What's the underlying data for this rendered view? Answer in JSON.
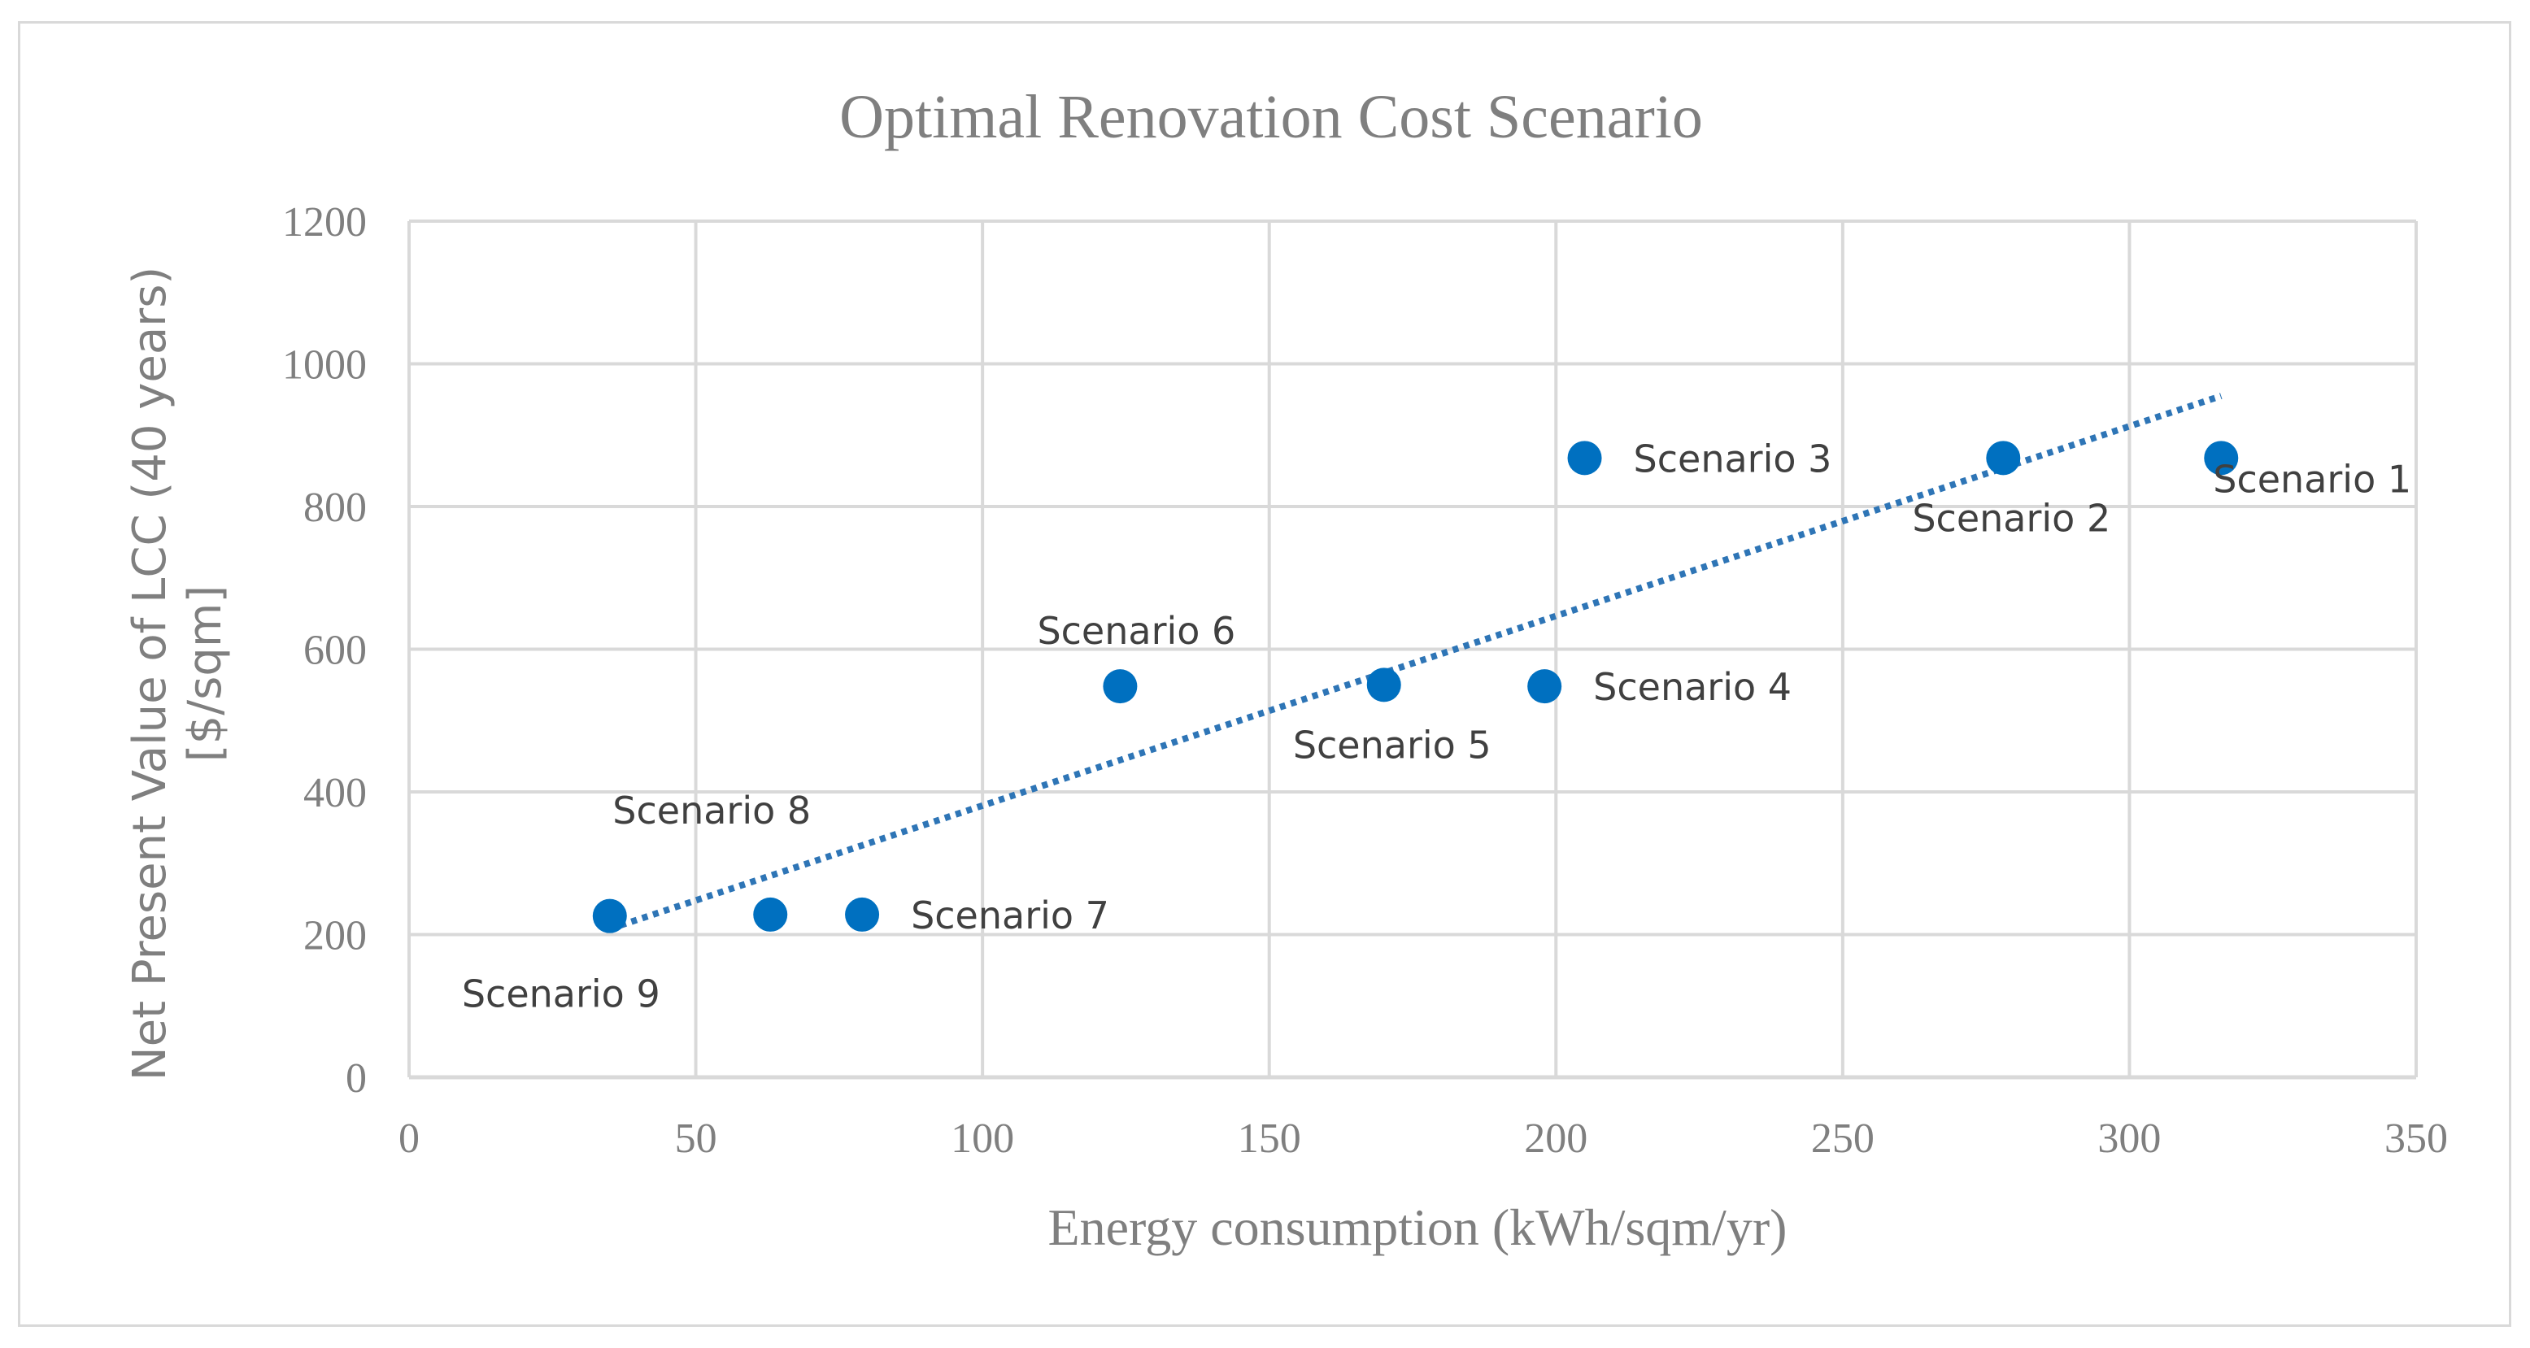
{
  "chart_data": {
    "type": "scatter",
    "title": "Optimal Renovation Cost Scenario",
    "xlabel": "Energy consumption (kWh/sqm/yr)",
    "ylabel_lines": [
      "Net Present Value of LCC (40 years)",
      "[$/sqm]"
    ],
    "xlim": [
      0,
      350
    ],
    "ylim": [
      0,
      1200
    ],
    "xticks": [
      0,
      50,
      100,
      150,
      200,
      250,
      300,
      350
    ],
    "yticks": [
      0,
      200,
      400,
      600,
      800,
      1000,
      1200
    ],
    "grid": true,
    "marker_color": "#0070c0",
    "trendline_color": "#2e75b6",
    "series": [
      {
        "name": "Scenarios",
        "points": [
          {
            "label": "Scenario 1",
            "x": 316,
            "y": 868,
            "label_pos": "below-right"
          },
          {
            "label": "Scenario 2",
            "x": 278,
            "y": 868,
            "label_pos": "below"
          },
          {
            "label": "Scenario 3",
            "x": 205,
            "y": 868,
            "label_pos": "right"
          },
          {
            "label": "Scenario 4",
            "x": 198,
            "y": 548,
            "label_pos": "right"
          },
          {
            "label": "Scenario 5",
            "x": 170,
            "y": 550,
            "label_pos": "below"
          },
          {
            "label": "Scenario 6",
            "x": 124,
            "y": 548,
            "label_pos": "above"
          },
          {
            "label": "Scenario 7",
            "x": 79,
            "y": 228,
            "label_pos": "right"
          },
          {
            "label": "Scenario 8",
            "x": 63,
            "y": 228,
            "label_pos": "above-left"
          },
          {
            "label": "Scenario 9",
            "x": 35,
            "y": 226,
            "label_pos": "below-left"
          }
        ]
      }
    ],
    "trendline": {
      "type": "linear",
      "x_start": 35,
      "y_start": 208,
      "x_end": 316,
      "y_end": 955
    }
  }
}
